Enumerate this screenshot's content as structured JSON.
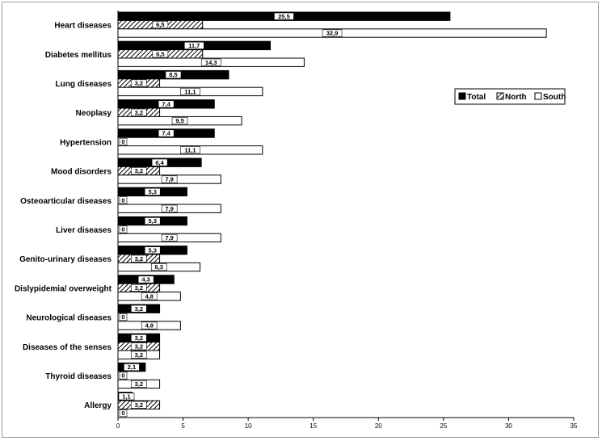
{
  "chart_data": {
    "type": "bar",
    "orientation": "horizontal",
    "categories": [
      "Heart diseases",
      "Diabetes mellitus",
      "Lung diseases",
      "Neoplasy",
      "Hypertension",
      "Mood disorders",
      "Osteoarticular diseases",
      "Liver diseases",
      "Genito-urinary diseases",
      "Dislypidemia/ overweight",
      "Neurological diseases",
      "Diseases of the senses",
      "Thyroid diseases",
      "Allergy"
    ],
    "series": [
      {
        "name": "Total",
        "pattern": "solid",
        "color": "#000000",
        "values": [
          25.5,
          11.7,
          8.5,
          7.4,
          7.4,
          6.4,
          5.3,
          5.3,
          5.3,
          4.3,
          3.2,
          3.2,
          2.1,
          1.1
        ],
        "labels": [
          "25,5",
          "11,7",
          "8,5",
          "7,4",
          "7,4",
          "6,4",
          "5,3",
          "5,3",
          "5,3",
          "4,3",
          "3,2",
          "3,2",
          "2,1",
          "1,1"
        ]
      },
      {
        "name": "North",
        "pattern": "hatched",
        "color": "#000000",
        "values": [
          6.5,
          6.5,
          3.2,
          3.2,
          0,
          3.2,
          0,
          0,
          3.2,
          3.2,
          0,
          3.2,
          0,
          3.2
        ],
        "labels": [
          "6,5",
          "6,5",
          "3,2",
          "3,2",
          "0",
          "3,2",
          "0",
          "0",
          "3,2",
          "3,2",
          "0",
          "3,2",
          "0",
          "3,2"
        ]
      },
      {
        "name": "South",
        "pattern": "white",
        "color": "#ffffff",
        "values": [
          32.9,
          14.3,
          11.1,
          9.5,
          11.1,
          7.9,
          7.9,
          7.9,
          6.3,
          4.8,
          4.8,
          3.2,
          3.2,
          0
        ],
        "labels": [
          "32,9",
          "14,3",
          "11,1",
          "9,5",
          "11,1",
          "7,9",
          "7,9",
          "7,9",
          "6,3",
          "4,8",
          "4,8",
          "3,2",
          "3,2",
          "0"
        ]
      }
    ],
    "x_ticks": [
      "0",
      "5",
      "10",
      "15",
      "20",
      "25",
      "30",
      "35"
    ],
    "xlim": [
      0,
      35
    ],
    "title": "",
    "xlabel": "",
    "ylabel": "",
    "grid": false,
    "legend": {
      "position": "right",
      "entries": [
        "Total",
        "North",
        "South"
      ]
    }
  }
}
